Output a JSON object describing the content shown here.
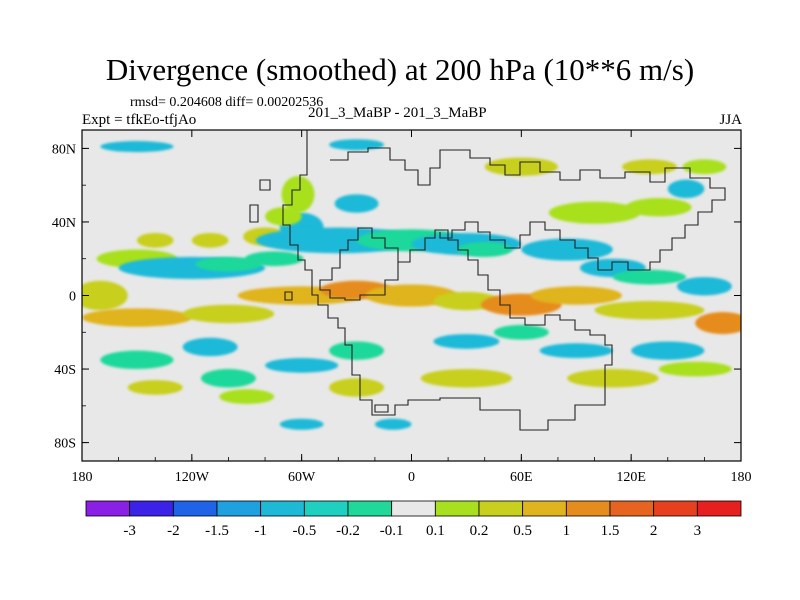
{
  "header": {
    "title": "Divergence (smoothed) at 200 hPa (10**6 m/s)",
    "stats": "rmsd= 0.204608 diff= 0.00202536",
    "expt": "Expt = tfkEo-tfjAo",
    "center_label": "201_3_MaBP - 201_3_MaBP",
    "season": "JJA"
  },
  "chart_data": {
    "type": "heatmap",
    "title": "Divergence (smoothed) at 200 hPa (10**6 m/s)",
    "xlabel": "",
    "ylabel": "",
    "xlim": [
      -180,
      180
    ],
    "ylim": [
      -90,
      90
    ],
    "xticks": [
      {
        "value": -180,
        "label": "180"
      },
      {
        "value": -120,
        "label": "120W"
      },
      {
        "value": -60,
        "label": "60W"
      },
      {
        "value": 0,
        "label": "0"
      },
      {
        "value": 60,
        "label": "60E"
      },
      {
        "value": 120,
        "label": "120E"
      },
      {
        "value": 180,
        "label": "180"
      }
    ],
    "yticks": [
      {
        "value": 80,
        "label": "80N"
      },
      {
        "value": 40,
        "label": "40N"
      },
      {
        "value": 0,
        "label": "0"
      },
      {
        "value": -40,
        "label": "40S"
      },
      {
        "value": -80,
        "label": "80S"
      }
    ],
    "colorbar": {
      "colors": [
        "#8a1fe6",
        "#3b22e6",
        "#1f64e6",
        "#1fa0e0",
        "#1fb9d8",
        "#1fd0c0",
        "#1fd89a",
        "#e8e8e8",
        "#a8e01f",
        "#c8cf1f",
        "#e0b41f",
        "#e68c1f",
        "#e6641f",
        "#e6401f",
        "#e61f1f"
      ],
      "labels": [
        "-3",
        "-2",
        "-1.5",
        "-1",
        "-0.5",
        "-0.2",
        "-0.1",
        "0.1",
        "0.2",
        "0.5",
        "1",
        "1.5",
        "2",
        "3"
      ]
    },
    "blobs": [
      {
        "lon": -150,
        "lat": 20,
        "rx": 22,
        "ry": 5,
        "level": 2
      },
      {
        "lon": -140,
        "lat": 30,
        "rx": 10,
        "ry": 4,
        "level": 3
      },
      {
        "lon": -110,
        "lat": 30,
        "rx": 10,
        "ry": 4,
        "level": 3
      },
      {
        "lon": -80,
        "lat": 32,
        "rx": 12,
        "ry": 5,
        "level": 3
      },
      {
        "lon": -60,
        "lat": 37,
        "rx": 12,
        "ry": 8,
        "level": 1
      },
      {
        "lon": -62,
        "lat": 55,
        "rx": 9,
        "ry": 10,
        "level": 2
      },
      {
        "lon": -70,
        "lat": 43,
        "rx": 10,
        "ry": 5,
        "level": 2
      },
      {
        "lon": -30,
        "lat": 50,
        "rx": 12,
        "ry": 5,
        "level": 1
      },
      {
        "lon": -30,
        "lat": 82,
        "rx": 15,
        "ry": 3,
        "level": 1
      },
      {
        "lon": -150,
        "lat": 81,
        "rx": 20,
        "ry": 3,
        "level": 1
      },
      {
        "lon": -120,
        "lat": 15,
        "rx": 40,
        "ry": 6,
        "level": 1
      },
      {
        "lon": -100,
        "lat": 17,
        "rx": 18,
        "ry": 4,
        "level": 0
      },
      {
        "lon": -75,
        "lat": 20,
        "rx": 16,
        "ry": 4,
        "level": 0
      },
      {
        "lon": -40,
        "lat": 30,
        "rx": 45,
        "ry": 7,
        "level": 1
      },
      {
        "lon": 0,
        "lat": 30,
        "rx": 30,
        "ry": 6,
        "level": 0
      },
      {
        "lon": 30,
        "lat": 28,
        "rx": 30,
        "ry": 6,
        "level": 1
      },
      {
        "lon": 40,
        "lat": 25,
        "rx": 15,
        "ry": 4,
        "level": 0
      },
      {
        "lon": 85,
        "lat": 25,
        "rx": 25,
        "ry": 6,
        "level": 1
      },
      {
        "lon": 110,
        "lat": 15,
        "rx": 18,
        "ry": 5,
        "level": 1
      },
      {
        "lon": 130,
        "lat": 10,
        "rx": 20,
        "ry": 4,
        "level": 0
      },
      {
        "lon": 160,
        "lat": 5,
        "rx": 15,
        "ry": 5,
        "level": 1
      },
      {
        "lon": 100,
        "lat": 45,
        "rx": 25,
        "ry": 6,
        "level": 2
      },
      {
        "lon": 135,
        "lat": 48,
        "rx": 18,
        "ry": 5,
        "level": 2
      },
      {
        "lon": 150,
        "lat": 58,
        "rx": 10,
        "ry": 5,
        "level": 1
      },
      {
        "lon": 160,
        "lat": 70,
        "rx": 12,
        "ry": 4,
        "level": 2
      },
      {
        "lon": 60,
        "lat": 70,
        "rx": 20,
        "ry": 5,
        "level": 3
      },
      {
        "lon": 130,
        "lat": 70,
        "rx": 15,
        "ry": 4,
        "level": 3
      },
      {
        "lon": -170,
        "lat": 0,
        "rx": 15,
        "ry": 8,
        "level": 3
      },
      {
        "lon": -150,
        "lat": -12,
        "rx": 30,
        "ry": 5,
        "level": 4
      },
      {
        "lon": -100,
        "lat": -10,
        "rx": 25,
        "ry": 5,
        "level": 3
      },
      {
        "lon": -60,
        "lat": 0,
        "rx": 35,
        "ry": 5,
        "level": 4
      },
      {
        "lon": -30,
        "lat": 3,
        "rx": 20,
        "ry": 5,
        "level": 5
      },
      {
        "lon": 0,
        "lat": 0,
        "rx": 25,
        "ry": 6,
        "level": 4
      },
      {
        "lon": 30,
        "lat": -3,
        "rx": 18,
        "ry": 5,
        "level": 3
      },
      {
        "lon": 60,
        "lat": -5,
        "rx": 22,
        "ry": 6,
        "level": 5
      },
      {
        "lon": 90,
        "lat": 0,
        "rx": 25,
        "ry": 5,
        "level": 4
      },
      {
        "lon": 130,
        "lat": -8,
        "rx": 30,
        "ry": 5,
        "level": 3
      },
      {
        "lon": 170,
        "lat": -15,
        "rx": 15,
        "ry": 6,
        "level": 5
      },
      {
        "lon": -150,
        "lat": -35,
        "rx": 20,
        "ry": 5,
        "level": 0
      },
      {
        "lon": -110,
        "lat": -28,
        "rx": 15,
        "ry": 5,
        "level": 1
      },
      {
        "lon": -100,
        "lat": -45,
        "rx": 15,
        "ry": 5,
        "level": 0
      },
      {
        "lon": -60,
        "lat": -38,
        "rx": 20,
        "ry": 4,
        "level": 1
      },
      {
        "lon": -30,
        "lat": -30,
        "rx": 15,
        "ry": 5,
        "level": 0
      },
      {
        "lon": 30,
        "lat": -25,
        "rx": 18,
        "ry": 4,
        "level": 1
      },
      {
        "lon": 60,
        "lat": -20,
        "rx": 15,
        "ry": 4,
        "level": 0
      },
      {
        "lon": 90,
        "lat": -30,
        "rx": 20,
        "ry": 4,
        "level": 1
      },
      {
        "lon": 140,
        "lat": -30,
        "rx": 20,
        "ry": 5,
        "level": 1
      },
      {
        "lon": -140,
        "lat": -50,
        "rx": 15,
        "ry": 4,
        "level": 3
      },
      {
        "lon": -90,
        "lat": -55,
        "rx": 15,
        "ry": 4,
        "level": 2
      },
      {
        "lon": -30,
        "lat": -50,
        "rx": 15,
        "ry": 5,
        "level": 3
      },
      {
        "lon": 30,
        "lat": -45,
        "rx": 25,
        "ry": 5,
        "level": 3
      },
      {
        "lon": 110,
        "lat": -45,
        "rx": 25,
        "ry": 5,
        "level": 3
      },
      {
        "lon": 155,
        "lat": -40,
        "rx": 20,
        "ry": 4,
        "level": 2
      },
      {
        "lon": -60,
        "lat": -70,
        "rx": 12,
        "ry": 3,
        "level": 1
      },
      {
        "lon": -10,
        "lat": -70,
        "rx": 10,
        "ry": 3,
        "level": 1
      }
    ]
  }
}
